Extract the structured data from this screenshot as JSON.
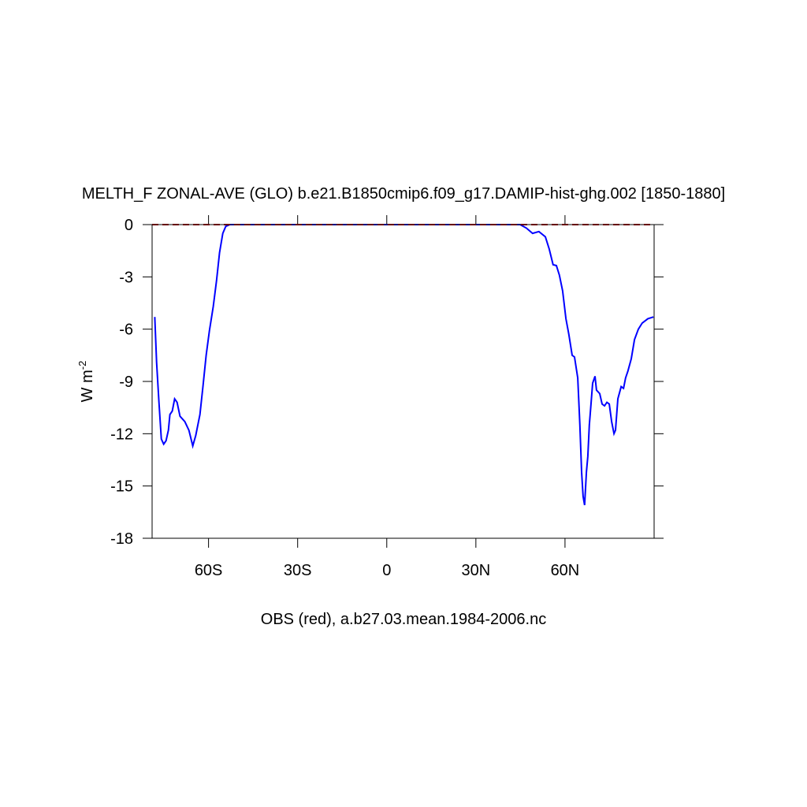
{
  "chart_data": {
    "type": "line",
    "title": "MELTH_F ZONAL-AVE (GLO) b.e21.B1850cmip6.f09_g17.DAMIP-hist-ghg.002 [1850-1880]",
    "xlabel": "OBS (red), a.b27.03.mean.1984-2006.nc",
    "ylabel": {
      "text": "W m",
      "sup": "-2"
    },
    "xlim": [
      -79,
      90
    ],
    "ylim": [
      -18,
      0
    ],
    "xticks": [
      {
        "value": -60,
        "label": "60S"
      },
      {
        "value": -30,
        "label": "30S"
      },
      0,
      {
        "value": 30,
        "label": "30N"
      },
      {
        "value": 60,
        "label": "60N"
      }
    ],
    "yticks": [
      0,
      -3,
      -6,
      -9,
      -12,
      -15,
      -18
    ],
    "series": [
      {
        "color": "#0000ff",
        "dash": false,
        "x": [
          -78.1,
          -77.5,
          -76.7,
          -75.9,
          -75.1,
          -74.3,
          -73.5,
          -73.0,
          -72.2,
          -71.4,
          -70.6,
          -69.6,
          -68.0,
          -66.6,
          -65.3,
          -64.3,
          -62.9,
          -61.9,
          -60.8,
          -59.7,
          -58.4,
          -57.3,
          -56.3,
          -55.2,
          -54.2,
          -52.8,
          44.9,
          47.0,
          49.1,
          51.2,
          53.4,
          54.7,
          56.0,
          57.1,
          58.1,
          59.2,
          60.3,
          61.3,
          62.4,
          63.2,
          64.3,
          65.0,
          65.6,
          66.1,
          66.6,
          67.2,
          67.7,
          68.2,
          68.8,
          69.3,
          70.1,
          70.6,
          71.7,
          72.5,
          73.3,
          74.1,
          74.9,
          75.7,
          76.5,
          77.0,
          77.8,
          78.9,
          79.7,
          80.4,
          81.2,
          82.3,
          83.4,
          84.7,
          86.0,
          87.9,
          89.8
        ],
        "values": [
          -5.3,
          -7.9,
          -10.2,
          -12.3,
          -12.6,
          -12.4,
          -11.8,
          -10.9,
          -10.7,
          -10.0,
          -10.2,
          -11.0,
          -11.3,
          -11.8,
          -12.7,
          -12.1,
          -10.9,
          -9.3,
          -7.5,
          -6.1,
          -4.7,
          -3.2,
          -1.6,
          -0.5,
          -0.1,
          0,
          0,
          -0.2,
          -0.5,
          -0.4,
          -0.7,
          -1.4,
          -2.3,
          -2.35,
          -2.9,
          -3.8,
          -5.4,
          -6.3,
          -7.5,
          -7.6,
          -8.8,
          -11.5,
          -14.2,
          -15.6,
          -16.1,
          -14.2,
          -13.3,
          -11.5,
          -10.2,
          -9.1,
          -8.7,
          -9.5,
          -9.7,
          -10.3,
          -10.4,
          -10.2,
          -10.3,
          -11.3,
          -12.0,
          -11.8,
          -10.0,
          -9.3,
          -9.4,
          -8.8,
          -8.4,
          -7.7,
          -6.6,
          -6.0,
          -5.65,
          -5.4,
          -5.3
        ]
      },
      {
        "color": "#cc0000",
        "dash": true,
        "x": [
          -79,
          90
        ],
        "values": [
          0,
          0
        ]
      }
    ]
  }
}
